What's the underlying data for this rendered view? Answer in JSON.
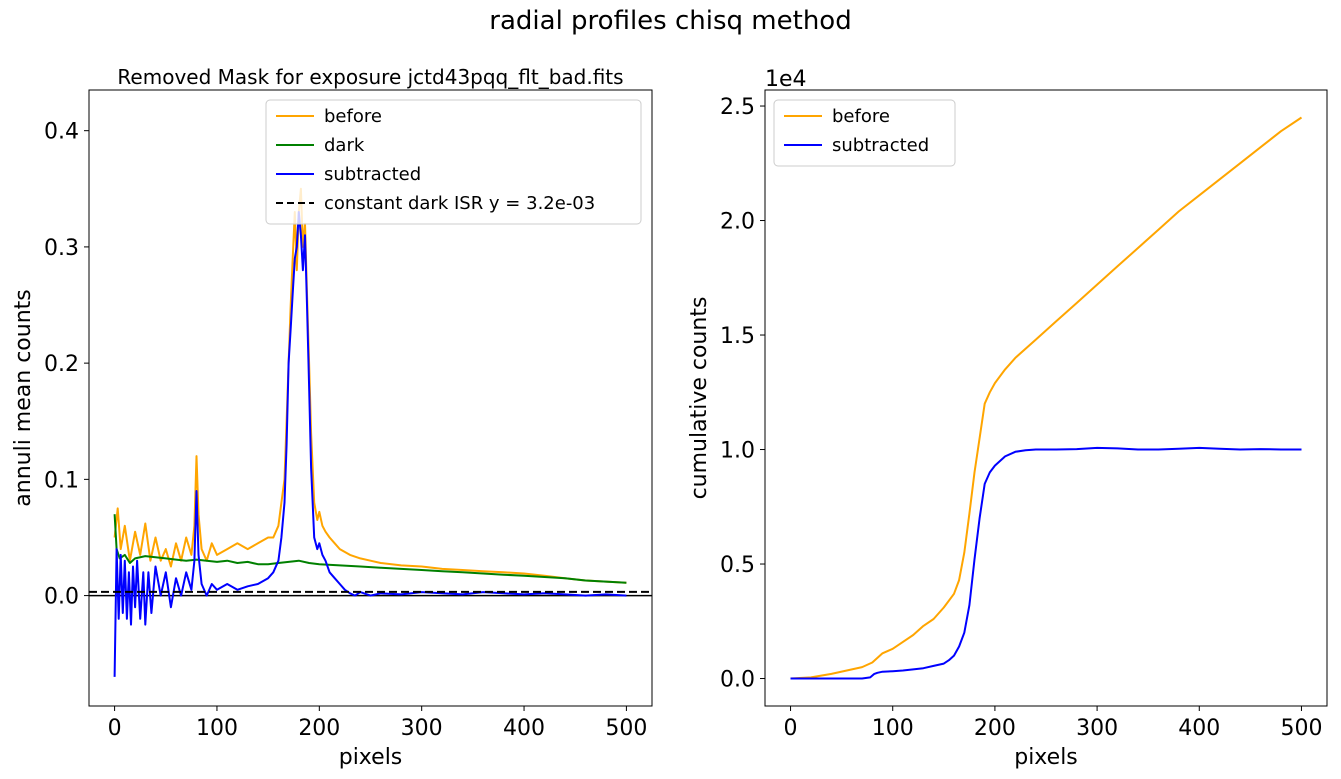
{
  "figure": {
    "suptitle": "radial profiles chisq method"
  },
  "chart_data": [
    {
      "type": "line",
      "title": "Removed Mask for exposure jctd43pqq_flt_bad.fits",
      "xlabel": "pixels",
      "ylabel": "annuli mean counts",
      "xlim": [
        -25,
        525
      ],
      "ylim": [
        -0.095,
        0.435
      ],
      "xticks": [
        0,
        100,
        200,
        300,
        400,
        500
      ],
      "yticks": [
        0.0,
        0.1,
        0.2,
        0.3,
        0.4
      ],
      "ytick_labels": [
        "0.0",
        "0.1",
        "0.2",
        "0.3",
        "0.4"
      ],
      "grid": false,
      "legend_position": "top-right",
      "hline_solid": 0.0,
      "series": [
        {
          "name": "before",
          "color": "#ffa500",
          "style": "solid",
          "x": [
            0,
            3,
            6,
            10,
            15,
            20,
            25,
            30,
            35,
            40,
            45,
            50,
            55,
            60,
            65,
            70,
            75,
            78,
            80,
            82,
            85,
            90,
            95,
            100,
            110,
            120,
            130,
            140,
            150,
            155,
            160,
            163,
            166,
            168,
            170,
            172,
            174,
            176,
            178,
            180,
            182,
            184,
            186,
            188,
            190,
            192,
            195,
            198,
            200,
            203,
            206,
            210,
            215,
            220,
            230,
            240,
            250,
            260,
            280,
            300,
            320,
            340,
            360,
            380,
            400,
            420,
            440,
            460,
            480,
            500
          ],
          "y": [
            0.05,
            0.075,
            0.04,
            0.06,
            0.03,
            0.055,
            0.035,
            0.062,
            0.03,
            0.05,
            0.03,
            0.04,
            0.025,
            0.045,
            0.03,
            0.05,
            0.035,
            0.06,
            0.12,
            0.07,
            0.04,
            0.03,
            0.045,
            0.035,
            0.04,
            0.045,
            0.04,
            0.045,
            0.05,
            0.05,
            0.06,
            0.08,
            0.1,
            0.15,
            0.2,
            0.25,
            0.29,
            0.33,
            0.28,
            0.33,
            0.35,
            0.3,
            0.32,
            0.26,
            0.2,
            0.14,
            0.08,
            0.065,
            0.072,
            0.06,
            0.055,
            0.05,
            0.045,
            0.04,
            0.035,
            0.032,
            0.03,
            0.028,
            0.026,
            0.025,
            0.023,
            0.022,
            0.021,
            0.02,
            0.019,
            0.017,
            0.015,
            0.013,
            0.012,
            0.011
          ]
        },
        {
          "name": "dark",
          "color": "#008000",
          "style": "solid",
          "x": [
            0,
            2,
            5,
            10,
            15,
            20,
            30,
            40,
            50,
            60,
            70,
            80,
            90,
            100,
            110,
            120,
            130,
            140,
            150,
            160,
            170,
            180,
            190,
            200,
            220,
            240,
            260,
            280,
            300,
            320,
            340,
            360,
            380,
            400,
            420,
            440,
            460,
            480,
            500
          ],
          "y": [
            0.07,
            0.04,
            0.032,
            0.035,
            0.028,
            0.032,
            0.034,
            0.033,
            0.032,
            0.031,
            0.03,
            0.031,
            0.03,
            0.029,
            0.03,
            0.028,
            0.029,
            0.027,
            0.027,
            0.028,
            0.029,
            0.03,
            0.028,
            0.027,
            0.026,
            0.025,
            0.024,
            0.023,
            0.022,
            0.021,
            0.02,
            0.019,
            0.018,
            0.017,
            0.016,
            0.015,
            0.013,
            0.012,
            0.011
          ]
        },
        {
          "name": "subtracted",
          "color": "#0000ff",
          "style": "solid",
          "x": [
            0,
            2,
            4,
            6,
            8,
            10,
            12,
            14,
            16,
            18,
            20,
            22,
            25,
            28,
            30,
            33,
            36,
            40,
            45,
            50,
            55,
            60,
            65,
            70,
            75,
            78,
            80,
            82,
            85,
            90,
            95,
            100,
            110,
            120,
            130,
            140,
            150,
            155,
            160,
            163,
            166,
            168,
            170,
            172,
            174,
            176,
            178,
            180,
            182,
            184,
            186,
            188,
            190,
            192,
            195,
            198,
            200,
            203,
            206,
            210,
            215,
            220,
            225,
            230,
            235,
            240,
            250,
            260,
            280,
            300,
            320,
            340,
            360,
            380,
            400,
            420,
            440,
            460,
            480,
            500
          ],
          "y": [
            -0.07,
            0.04,
            -0.02,
            0.035,
            -0.015,
            0.03,
            -0.02,
            0.02,
            -0.025,
            0.025,
            -0.01,
            0.03,
            -0.02,
            0.02,
            -0.025,
            0.02,
            -0.015,
            0.025,
            0.0,
            0.02,
            -0.01,
            0.015,
            0.0,
            0.02,
            0.005,
            0.03,
            0.09,
            0.035,
            0.01,
            0.0,
            0.01,
            0.005,
            0.01,
            0.005,
            0.008,
            0.01,
            0.015,
            0.02,
            0.03,
            0.05,
            0.08,
            0.13,
            0.2,
            0.23,
            0.26,
            0.29,
            0.3,
            0.33,
            0.31,
            0.28,
            0.31,
            0.25,
            0.18,
            0.11,
            0.05,
            0.04,
            0.045,
            0.035,
            0.03,
            0.02,
            0.015,
            0.01,
            0.005,
            0.002,
            0.0,
            0.003,
            0.0,
            0.002,
            0.001,
            0.003,
            0.002,
            0.001,
            0.003,
            0.002,
            0.001,
            0.002,
            0.001,
            0.0,
            0.001,
            0.0
          ]
        },
        {
          "name": "constant dark ISR y = 3.2e-03",
          "color": "#000000",
          "style": "dashed",
          "x": [
            -25,
            525
          ],
          "y": [
            0.0032,
            0.0032
          ]
        }
      ]
    },
    {
      "type": "line",
      "title": "",
      "xlabel": "pixels",
      "ylabel": "cumulative counts",
      "scale_label": "1e4",
      "xlim": [
        -25,
        525
      ],
      "ylim": [
        -0.12,
        2.57
      ],
      "xticks": [
        0,
        100,
        200,
        300,
        400,
        500
      ],
      "yticks": [
        0.0,
        0.5,
        1.0,
        1.5,
        2.0,
        2.5
      ],
      "ytick_labels": [
        "0.0",
        "0.5",
        "1.0",
        "1.5",
        "2.0",
        "2.5"
      ],
      "grid": false,
      "legend_position": "top-left",
      "series": [
        {
          "name": "before",
          "color": "#ffa500",
          "style": "solid",
          "x": [
            0,
            20,
            40,
            60,
            70,
            80,
            85,
            90,
            100,
            110,
            120,
            130,
            140,
            150,
            160,
            165,
            170,
            175,
            180,
            185,
            190,
            195,
            200,
            210,
            220,
            240,
            260,
            280,
            300,
            320,
            340,
            360,
            380,
            400,
            420,
            440,
            460,
            480,
            500
          ],
          "y": [
            0.0,
            0.005,
            0.02,
            0.04,
            0.05,
            0.07,
            0.09,
            0.11,
            0.13,
            0.16,
            0.19,
            0.23,
            0.26,
            0.31,
            0.37,
            0.43,
            0.55,
            0.72,
            0.9,
            1.05,
            1.2,
            1.25,
            1.29,
            1.35,
            1.4,
            1.48,
            1.56,
            1.64,
            1.72,
            1.8,
            1.88,
            1.96,
            2.04,
            2.11,
            2.18,
            2.25,
            2.32,
            2.39,
            2.45
          ]
        },
        {
          "name": "subtracted",
          "color": "#0000ff",
          "style": "solid",
          "x": [
            0,
            40,
            70,
            78,
            82,
            85,
            90,
            100,
            110,
            120,
            130,
            140,
            150,
            155,
            160,
            165,
            170,
            175,
            180,
            185,
            190,
            195,
            200,
            210,
            220,
            230,
            240,
            260,
            280,
            300,
            320,
            340,
            360,
            380,
            400,
            420,
            440,
            460,
            480,
            500
          ],
          "y": [
            0.0,
            0.0,
            0.0,
            0.005,
            0.02,
            0.025,
            0.03,
            0.032,
            0.035,
            0.04,
            0.045,
            0.055,
            0.065,
            0.08,
            0.1,
            0.14,
            0.2,
            0.32,
            0.52,
            0.7,
            0.85,
            0.9,
            0.93,
            0.97,
            0.99,
            0.997,
            1.0,
            1.0,
            1.002,
            1.007,
            1.005,
            1.0,
            1.0,
            1.003,
            1.007,
            1.003,
            1.0,
            1.002,
            1.0,
            1.0
          ]
        }
      ]
    }
  ]
}
